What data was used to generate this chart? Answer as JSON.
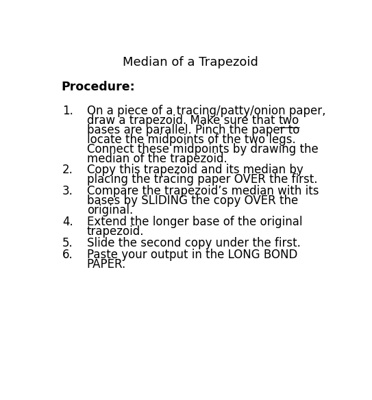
{
  "title": "Median of a Trapezoid",
  "background_color": "#ffffff",
  "text_color": "#000000",
  "title_fontsize": 13,
  "body_fontsize": 12,
  "procedure_label": "Procedure:",
  "item_data": [
    {
      "number": "1.",
      "lines": [
        "On a piece of a tracing/patty/onion paper,",
        "draw a trapezoid. Make sure that two",
        "bases are parallel. Pinch the paper to",
        "locate the midpoints of the two legs.",
        "Connect these midpoints by drawing the",
        "median of the trapezoid."
      ],
      "underline": {
        "word": "two",
        "line_index": 1,
        "before": "draw a trapezoid. Make sure that "
      }
    },
    {
      "number": "2.",
      "lines": [
        "Copy this trapezoid and its median by",
        "placing the tracing paper OVER the first."
      ]
    },
    {
      "number": "3.",
      "lines": [
        "Compare the trapezoid’s median with its",
        "bases by SLIDING the copy OVER the",
        "original."
      ]
    },
    {
      "number": "4.",
      "lines": [
        "Extend the longer base of the original",
        "trapezoid."
      ]
    },
    {
      "number": "5.",
      "lines": [
        "Slide the second copy under the first."
      ]
    },
    {
      "number": "6.",
      "lines": [
        "Paste your output in the LONG BOND",
        "PAPER."
      ]
    }
  ]
}
